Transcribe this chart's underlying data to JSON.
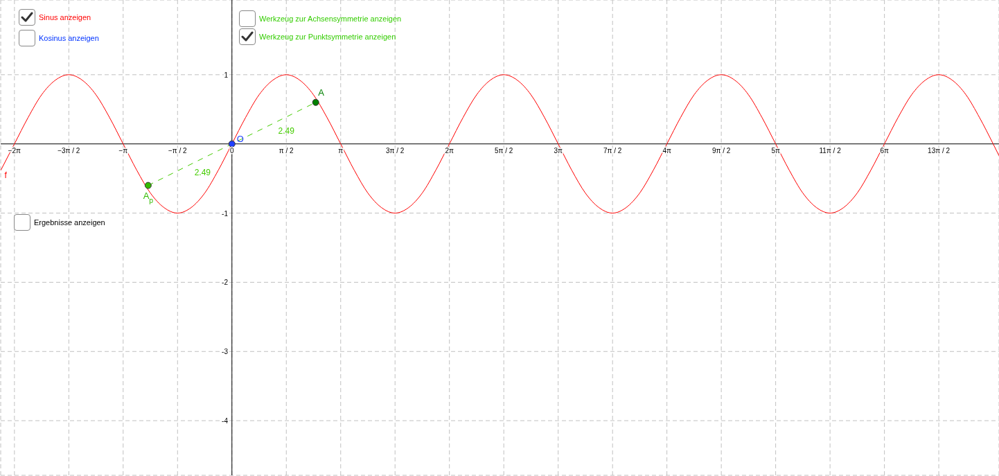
{
  "chart_data": {
    "type": "line",
    "xlim": [
      -6.68,
      22.16
    ],
    "ylim": [
      -4.79,
      2.08
    ],
    "xticks": [
      {
        "value": -6.283,
        "label": "−2π"
      },
      {
        "value": -4.712,
        "label": "−3π / 2"
      },
      {
        "value": -3.142,
        "label": "−π"
      },
      {
        "value": -1.571,
        "label": "−π / 2"
      },
      {
        "value": 0,
        "label": "0"
      },
      {
        "value": 1.571,
        "label": "π / 2"
      },
      {
        "value": 3.142,
        "label": "π"
      },
      {
        "value": 4.712,
        "label": "3π / 2"
      },
      {
        "value": 6.283,
        "label": "2π"
      },
      {
        "value": 7.854,
        "label": "5π / 2"
      },
      {
        "value": 9.425,
        "label": "3π"
      },
      {
        "value": 10.996,
        "label": "7π / 2"
      },
      {
        "value": 12.566,
        "label": "4π"
      },
      {
        "value": 14.137,
        "label": "9π / 2"
      },
      {
        "value": 15.708,
        "label": "5π"
      },
      {
        "value": 17.279,
        "label": "11π / 2"
      },
      {
        "value": 18.85,
        "label": "6π"
      },
      {
        "value": 20.42,
        "label": "13π / 2"
      }
    ],
    "yticks": [
      -4,
      -3,
      -2,
      -1,
      1
    ],
    "grid": true,
    "series": [
      {
        "name": "f",
        "color": "#ff0000",
        "x": [
          -6.676,
          -6.283,
          -5.89,
          -5.498,
          -5.105,
          -4.712,
          -4.32,
          -3.927,
          -3.534,
          -3.142,
          -2.749,
          -2.356,
          -1.963,
          -1.571,
          -1.178,
          -0.785,
          -0.393,
          0,
          0.393,
          0.785,
          1.178,
          1.571,
          1.963,
          2.356,
          2.749,
          3.142,
          3.534,
          3.927,
          4.32,
          4.712,
          5.105,
          5.498,
          5.89,
          6.283,
          6.676,
          7.069,
          7.461,
          7.854,
          8.247,
          8.639,
          9.032,
          9.425,
          9.817,
          10.21,
          10.603,
          10.996,
          11.388,
          11.781,
          12.174,
          12.566,
          12.959,
          13.352,
          13.744,
          14.137,
          14.53,
          14.923,
          15.315,
          15.708,
          16.101,
          16.493,
          16.886,
          17.279,
          17.671,
          18.064,
          18.457,
          18.85,
          19.242,
          19.635,
          20.028,
          20.42,
          20.813,
          21.206,
          21.598,
          21.991,
          22.16
        ],
        "values": [
          -0.38,
          0,
          0.38,
          0.71,
          0.92,
          1,
          0.92,
          0.71,
          0.38,
          0,
          -0.38,
          -0.71,
          -0.92,
          -1,
          -0.92,
          -0.71,
          -0.38,
          0,
          0.38,
          0.71,
          0.92,
          1,
          0.92,
          0.71,
          0.38,
          0,
          -0.38,
          -0.71,
          -0.92,
          -1,
          -0.92,
          -0.71,
          -0.38,
          0,
          0.38,
          0.71,
          0.92,
          1,
          0.92,
          0.71,
          0.38,
          0,
          -0.38,
          -0.71,
          -0.92,
          -1,
          -0.92,
          -0.71,
          -0.38,
          0,
          0.38,
          0.71,
          0.92,
          1,
          0.92,
          0.71,
          0.38,
          0,
          -0.38,
          -0.71,
          -0.92,
          -1,
          -0.92,
          -0.71,
          -0.38,
          0,
          0.38,
          0.71,
          0.92,
          1,
          0.92,
          0.71,
          0.38,
          0,
          -0.17
        ]
      },
      {
        "type": "line",
        "color": "#44cc00",
        "line_style": "dashed",
        "x": [
          -2.42,
          0,
          2.42
        ],
        "values": [
          -0.6,
          0,
          0.6
        ]
      },
      {
        "name": "A",
        "type": "scatter",
        "marker": "circle",
        "color": "#008000",
        "x": [
          2.42
        ],
        "values": [
          0.6
        ]
      },
      {
        "name": "A$_{p}$",
        "type": "scatter",
        "marker": "circle",
        "color": "#33bb00",
        "x": [
          -2.42
        ],
        "values": [
          -0.6
        ]
      },
      {
        "name": "O",
        "type": "scatter",
        "marker": "circle",
        "color": "#1f3fff",
        "x": [
          0
        ],
        "values": [
          0
        ]
      }
    ],
    "annotations": [
      "Sinus anzeigen",
      "Kosinus anzeigen",
      "Werkzeug zur Achsensymmetrie anzeigen",
      "Werkzeug zur Punktsymmetrie anzeigen",
      "Ergebnisse anzeigen",
      "2.49",
      "2.49"
    ]
  }
}
